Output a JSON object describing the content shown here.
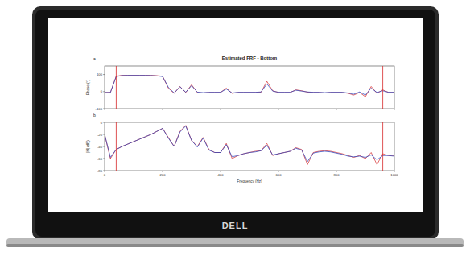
{
  "device": {
    "logo": "DELL"
  },
  "chart_data": [
    {
      "type": "line",
      "title": "Estimated FRF - Bottom",
      "panel": "a",
      "y_label": "Phase (°)",
      "x": [
        0,
        20,
        40,
        60,
        80,
        100,
        120,
        140,
        160,
        180,
        200,
        220,
        240,
        260,
        280,
        300,
        320,
        340,
        360,
        380,
        400,
        420,
        440,
        460,
        480,
        500,
        520,
        540,
        560,
        580,
        600,
        620,
        640,
        660,
        680,
        700,
        720,
        740,
        760,
        780,
        800,
        820,
        840,
        860,
        880,
        900,
        920,
        940,
        960,
        980,
        1000
      ],
      "series": [
        {
          "color": "#d62728",
          "values": [
            -5,
            -5,
            90,
            95,
            95,
            95,
            95,
            95,
            95,
            93,
            90,
            20,
            -10,
            30,
            -5,
            40,
            -5,
            -8,
            -5,
            -5,
            -5,
            20,
            -10,
            -5,
            -5,
            -5,
            -5,
            -3,
            60,
            5,
            -5,
            -5,
            -5,
            10,
            5,
            -3,
            -5,
            -5,
            -8,
            -5,
            -5,
            -5,
            -10,
            -20,
            -5,
            -30,
            30,
            -10,
            10,
            -5,
            -5
          ]
        },
        {
          "color": "#1f3fbf",
          "values": [
            -5,
            -5,
            88,
            94,
            95,
            95,
            95,
            95,
            94,
            92,
            88,
            25,
            -8,
            28,
            -3,
            35,
            -3,
            -6,
            -4,
            -4,
            -4,
            15,
            -8,
            -4,
            -4,
            -4,
            -4,
            -2,
            45,
            3,
            -4,
            -4,
            -4,
            8,
            3,
            -2,
            -4,
            -4,
            -6,
            -4,
            -4,
            -4,
            -8,
            -15,
            -2,
            -20,
            20,
            -5,
            5,
            -4,
            -4
          ]
        }
      ],
      "xlim": [
        0,
        1000
      ],
      "xticks": [
        0,
        200,
        400,
        600,
        800,
        1000
      ],
      "ylim": [
        -100,
        150
      ],
      "yticks": [
        -100,
        0,
        100
      ],
      "vlines": [
        40,
        960
      ],
      "tick_labels": "y"
    },
    {
      "type": "line",
      "panel": "b",
      "x_label": "Frequency (Hz)",
      "y_label": "|H| (dB)",
      "x": [
        0,
        20,
        40,
        60,
        80,
        100,
        120,
        140,
        160,
        180,
        200,
        220,
        240,
        260,
        280,
        300,
        320,
        340,
        360,
        380,
        400,
        420,
        440,
        460,
        480,
        500,
        520,
        540,
        560,
        580,
        600,
        620,
        640,
        660,
        680,
        700,
        720,
        740,
        760,
        780,
        800,
        820,
        840,
        860,
        880,
        900,
        920,
        940,
        960,
        980,
        1000
      ],
      "series": [
        {
          "color": "#d62728",
          "values": [
            -20,
            -60,
            -45,
            -40,
            -36,
            -32,
            -28,
            -24,
            -20,
            -15,
            -10,
            -25,
            -40,
            -15,
            -5,
            -30,
            -40,
            -25,
            -45,
            -50,
            -50,
            -35,
            -60,
            -55,
            -52,
            -50,
            -48,
            -47,
            -35,
            -55,
            -52,
            -50,
            -48,
            -42,
            -45,
            -70,
            -50,
            -48,
            -47,
            -48,
            -50,
            -52,
            -55,
            -58,
            -55,
            -60,
            -50,
            -70,
            -52,
            -55,
            -55
          ]
        },
        {
          "color": "#1f3fbf",
          "values": [
            -20,
            -58,
            -45,
            -40,
            -36,
            -32,
            -28,
            -24,
            -20,
            -15,
            -10,
            -26,
            -40,
            -16,
            -6,
            -30,
            -41,
            -26,
            -46,
            -50,
            -50,
            -37,
            -57,
            -55,
            -52,
            -50,
            -49,
            -47,
            -38,
            -54,
            -52,
            -50,
            -48,
            -43,
            -46,
            -65,
            -51,
            -49,
            -48,
            -49,
            -51,
            -53,
            -56,
            -57,
            -56,
            -58,
            -54,
            -62,
            -55,
            -55,
            -56
          ]
        }
      ],
      "xlim": [
        0,
        1000
      ],
      "xticks": [
        0,
        200,
        400,
        600,
        800,
        1000
      ],
      "ylim": [
        -80,
        0
      ],
      "yticks": [
        -80,
        -60,
        -40,
        -20,
        0
      ],
      "vlines": [
        40,
        960
      ]
    }
  ]
}
